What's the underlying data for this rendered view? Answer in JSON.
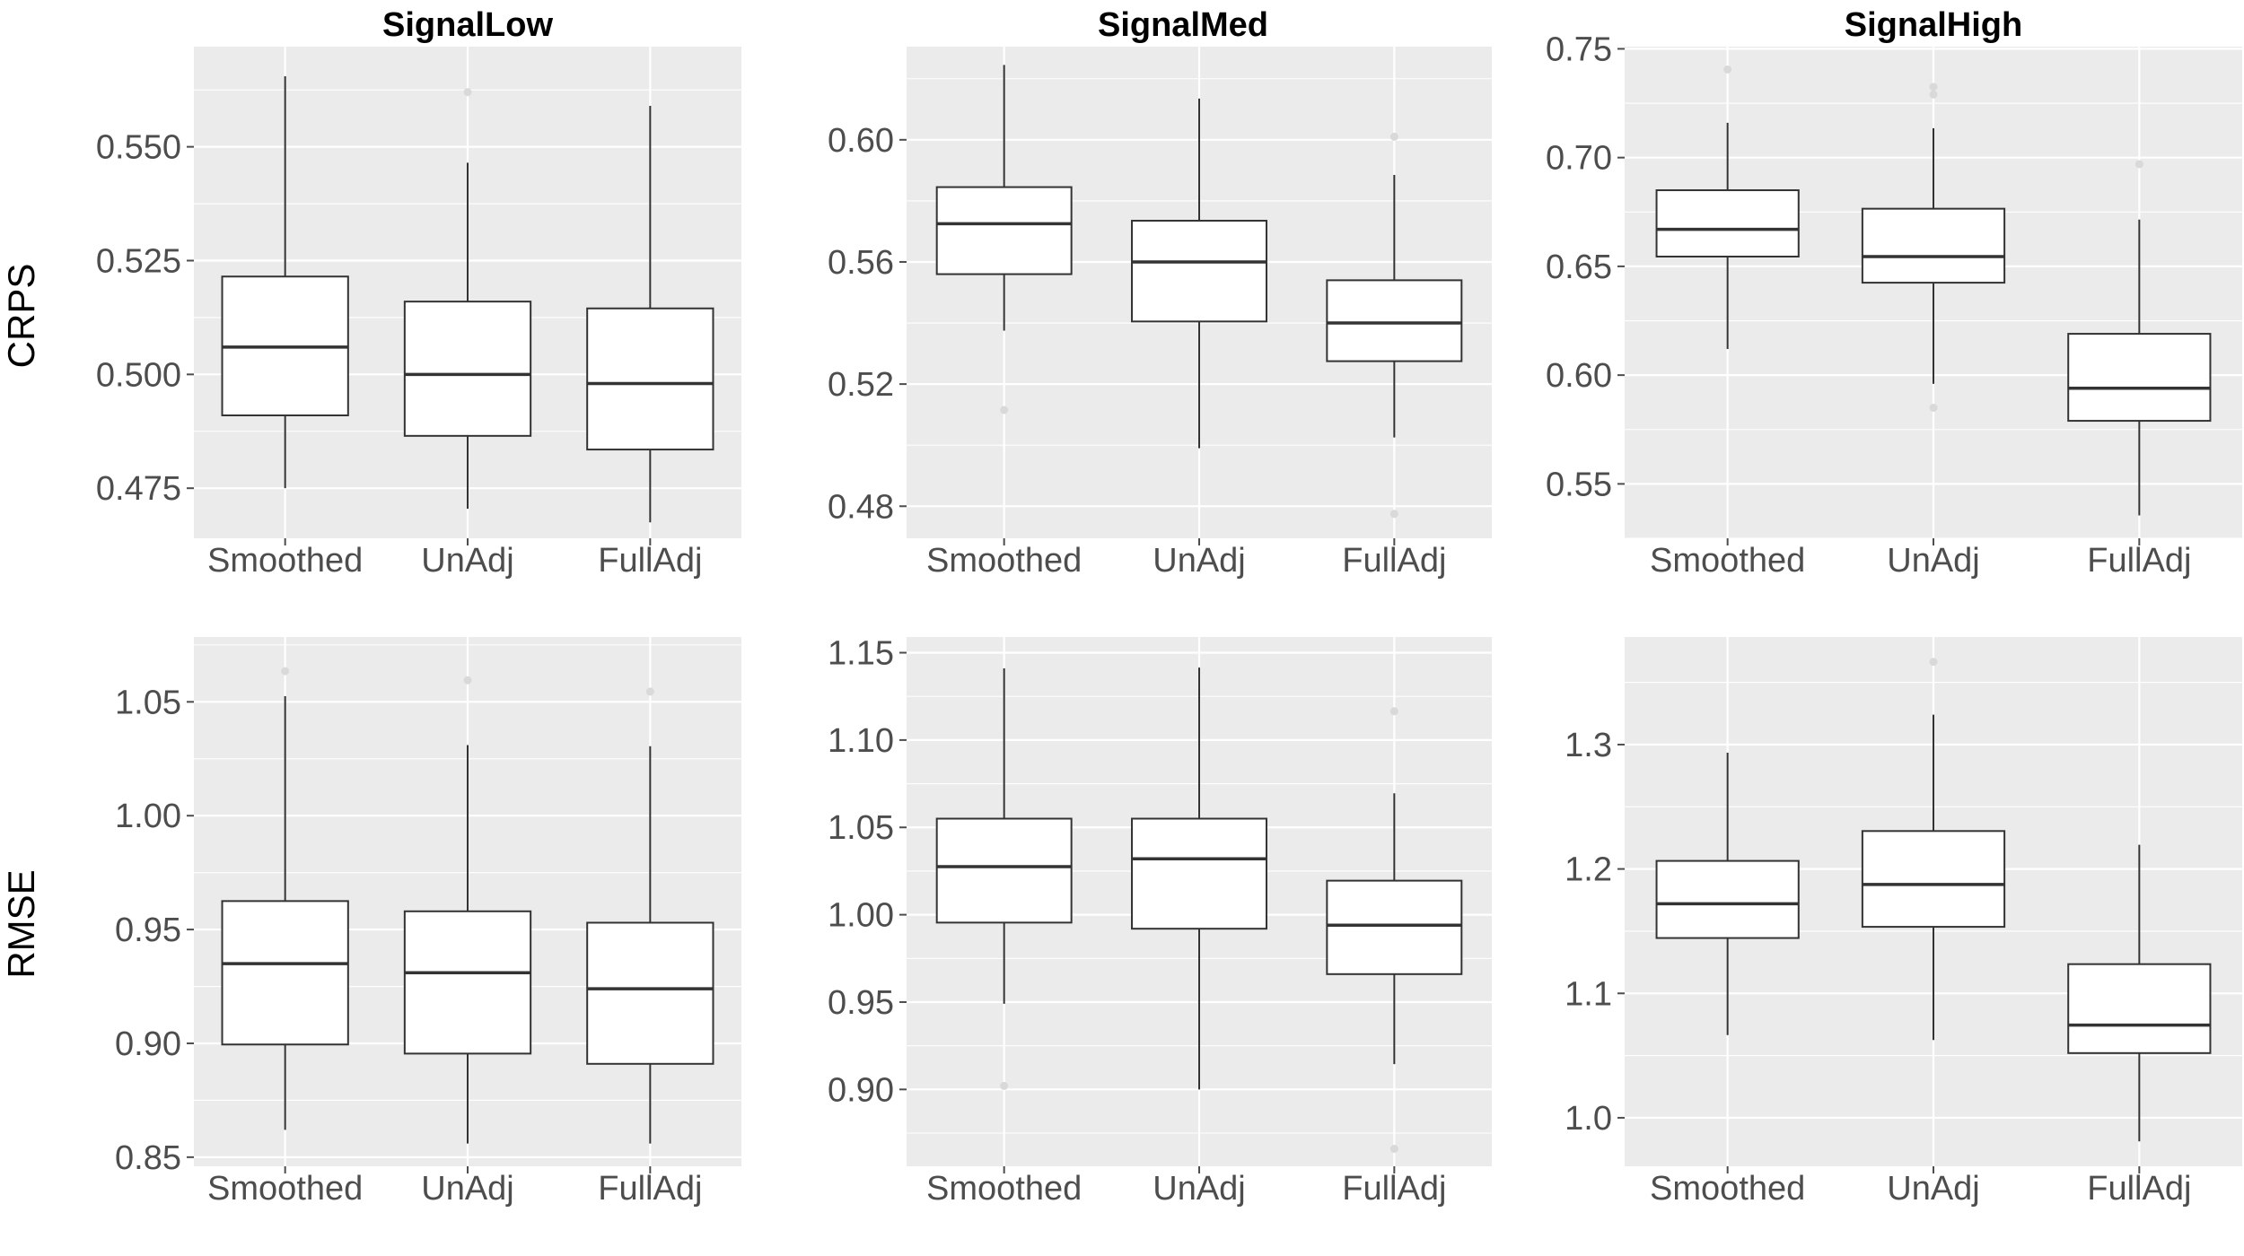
{
  "chart_data": {
    "type": "boxplot",
    "columns": [
      "SignalLow",
      "SignalMed",
      "SignalHigh"
    ],
    "rows": [
      "CRPS",
      "RMSE"
    ],
    "categories": [
      "Smoothed",
      "UnAdj",
      "FullAdj"
    ],
    "panels": [
      {
        "row": "CRPS",
        "column": "SignalLow",
        "ylim": [
          0.464,
          0.572
        ],
        "yticks": [
          0.475,
          0.5,
          0.525,
          0.55
        ],
        "ytick_labels": [
          "0.475",
          "0.500",
          "0.525",
          "0.550"
        ],
        "boxes": [
          {
            "category": "Smoothed",
            "min": 0.475,
            "q1": 0.491,
            "median": 0.506,
            "q3": 0.5215,
            "max": 0.5655,
            "outliers": []
          },
          {
            "category": "UnAdj",
            "min": 0.4705,
            "q1": 0.4865,
            "median": 0.5,
            "q3": 0.516,
            "max": 0.5465,
            "outliers": [
              0.562
            ]
          },
          {
            "category": "FullAdj",
            "min": 0.4675,
            "q1": 0.4835,
            "median": 0.498,
            "q3": 0.5145,
            "max": 0.559,
            "outliers": []
          }
        ]
      },
      {
        "row": "CRPS",
        "column": "SignalMed",
        "ylim": [
          0.4695,
          0.6305
        ],
        "yticks": [
          0.48,
          0.52,
          0.56,
          0.6
        ],
        "ytick_labels": [
          "0.48",
          "0.52",
          "0.56",
          "0.60"
        ],
        "boxes": [
          {
            "category": "Smoothed",
            "min": 0.5375,
            "q1": 0.556,
            "median": 0.5725,
            "q3": 0.5845,
            "max": 0.6245,
            "outliers": [
              0.5115
            ]
          },
          {
            "category": "UnAdj",
            "min": 0.499,
            "q1": 0.5405,
            "median": 0.56,
            "q3": 0.5735,
            "max": 0.6135,
            "outliers": []
          },
          {
            "category": "FullAdj",
            "min": 0.5025,
            "q1": 0.5275,
            "median": 0.54,
            "q3": 0.554,
            "max": 0.5885,
            "outliers": [
              0.601,
              0.4775
            ]
          }
        ]
      },
      {
        "row": "CRPS",
        "column": "SignalHigh",
        "ylim": [
          0.525,
          0.751
        ],
        "yticks": [
          0.55,
          0.6,
          0.65,
          0.7,
          0.75
        ],
        "ytick_labels": [
          "0.55",
          "0.60",
          "0.65",
          "0.70",
          "0.75"
        ],
        "boxes": [
          {
            "category": "Smoothed",
            "min": 0.612,
            "q1": 0.6545,
            "median": 0.667,
            "q3": 0.685,
            "max": 0.716,
            "outliers": [
              0.7405
            ]
          },
          {
            "category": "UnAdj",
            "min": 0.596,
            "q1": 0.6425,
            "median": 0.6545,
            "q3": 0.6765,
            "max": 0.7135,
            "outliers": [
              0.7325,
              0.729,
              0.585
            ]
          },
          {
            "category": "FullAdj",
            "min": 0.5355,
            "q1": 0.579,
            "median": 0.594,
            "q3": 0.619,
            "max": 0.6715,
            "outliers": [
              0.697
            ]
          }
        ]
      },
      {
        "row": "RMSE",
        "column": "SignalLow",
        "ylim": [
          0.846,
          1.0785
        ],
        "yticks": [
          0.85,
          0.9,
          0.95,
          1.0,
          1.05
        ],
        "ytick_labels": [
          "0.85",
          "0.90",
          "0.95",
          "1.00",
          "1.05"
        ],
        "boxes": [
          {
            "category": "Smoothed",
            "min": 0.862,
            "q1": 0.8995,
            "median": 0.935,
            "q3": 0.9625,
            "max": 1.0525,
            "outliers": [
              1.0635
            ]
          },
          {
            "category": "UnAdj",
            "min": 0.856,
            "q1": 0.8955,
            "median": 0.931,
            "q3": 0.958,
            "max": 1.031,
            "outliers": [
              1.0595
            ]
          },
          {
            "category": "FullAdj",
            "min": 0.856,
            "q1": 0.891,
            "median": 0.924,
            "q3": 0.953,
            "max": 1.0305,
            "outliers": [
              1.0545
            ]
          }
        ]
      },
      {
        "row": "RMSE",
        "column": "SignalMed",
        "ylim": [
          0.856,
          1.159
        ],
        "yticks": [
          0.9,
          0.95,
          1.0,
          1.05,
          1.1,
          1.15
        ],
        "ytick_labels": [
          "0.90",
          "0.95",
          "1.00",
          "1.05",
          "1.10",
          "1.15"
        ],
        "boxes": [
          {
            "category": "Smoothed",
            "min": 0.949,
            "q1": 0.9955,
            "median": 1.0275,
            "q3": 1.055,
            "max": 1.141,
            "outliers": [
              0.902
            ]
          },
          {
            "category": "UnAdj",
            "min": 0.9,
            "q1": 0.992,
            "median": 1.032,
            "q3": 1.055,
            "max": 1.1415,
            "outliers": []
          },
          {
            "category": "FullAdj",
            "min": 0.9145,
            "q1": 0.966,
            "median": 0.994,
            "q3": 1.0195,
            "max": 1.0695,
            "outliers": [
              1.1165,
              0.866
            ]
          }
        ]
      },
      {
        "row": "RMSE",
        "column": "SignalHigh",
        "ylim": [
          0.961,
          1.3865
        ],
        "yticks": [
          1.0,
          1.1,
          1.2,
          1.3
        ],
        "ytick_labels": [
          "1.0",
          "1.1",
          "1.2",
          "1.3"
        ],
        "boxes": [
          {
            "category": "Smoothed",
            "min": 1.0665,
            "q1": 1.1445,
            "median": 1.172,
            "q3": 1.2065,
            "max": 1.2935,
            "outliers": []
          },
          {
            "category": "UnAdj",
            "min": 1.0625,
            "q1": 1.1535,
            "median": 1.1875,
            "q3": 1.2305,
            "max": 1.324,
            "outliers": [
              1.3665
            ]
          },
          {
            "category": "FullAdj",
            "min": 0.981,
            "q1": 1.052,
            "median": 1.0745,
            "q3": 1.1235,
            "max": 1.2195,
            "outliers": []
          }
        ]
      }
    ]
  }
}
